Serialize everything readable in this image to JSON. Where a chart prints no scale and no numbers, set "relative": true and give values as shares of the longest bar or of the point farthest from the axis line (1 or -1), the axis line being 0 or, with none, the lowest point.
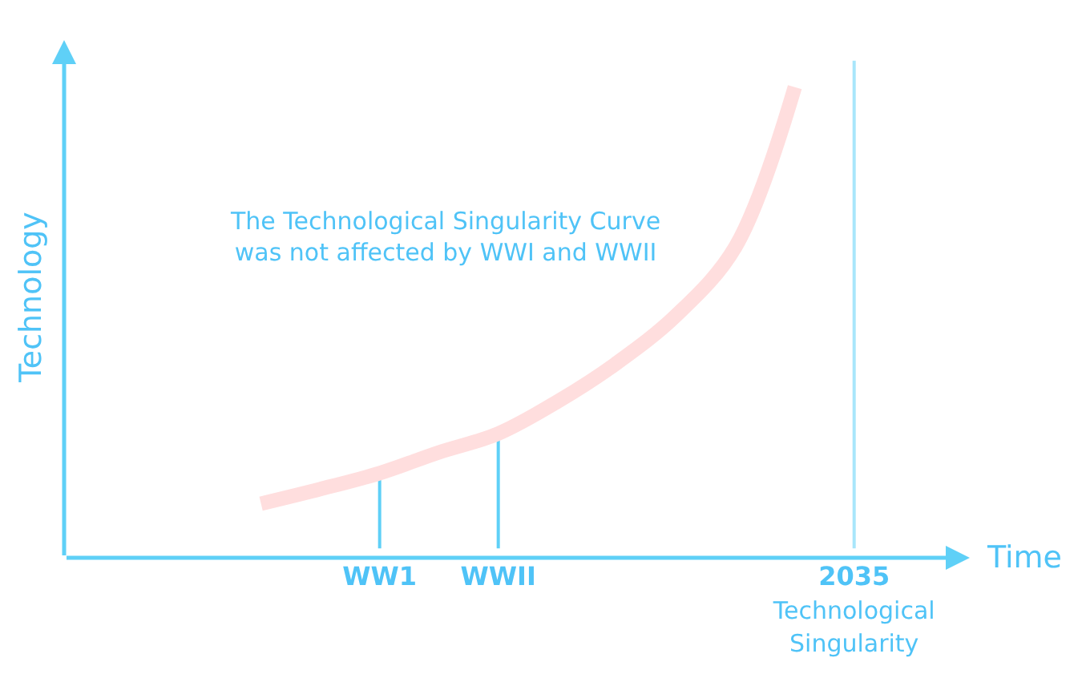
{
  "chart_data": {
    "type": "line",
    "relative": true,
    "xlabel": "Time",
    "ylabel": "Technology",
    "annotations": [
      "The Technological Singularity Curve\nwas not affected by WWI and WWII"
    ],
    "categories": [
      null,
      null,
      null,
      null,
      null,
      "WW1",
      null,
      "WWII",
      null,
      null,
      null,
      null,
      null,
      "2035\nTechnological\nSingularity",
      null
    ],
    "tick_labels": "x",
    "grid": false,
    "marker": "none",
    "line_style": "solid",
    "ref_lines": [
      {
        "axis": "x",
        "value": "WW1",
        "color": "#5fd0f7"
      },
      {
        "axis": "x",
        "value": "WWII",
        "color": "#5fd0f7"
      },
      {
        "axis": "x",
        "value": "2035\nTechnological\nSingularity",
        "color": "#a8e6fb"
      }
    ],
    "series": [
      {
        "color": "#ffdede",
        "values": [
          null,
          null,
          null,
          0.115,
          0.146,
          0.18,
          0.224,
          0.264,
          0.332,
          0.414,
          0.515,
          0.661,
          1,
          null,
          null
        ]
      }
    ]
  }
}
